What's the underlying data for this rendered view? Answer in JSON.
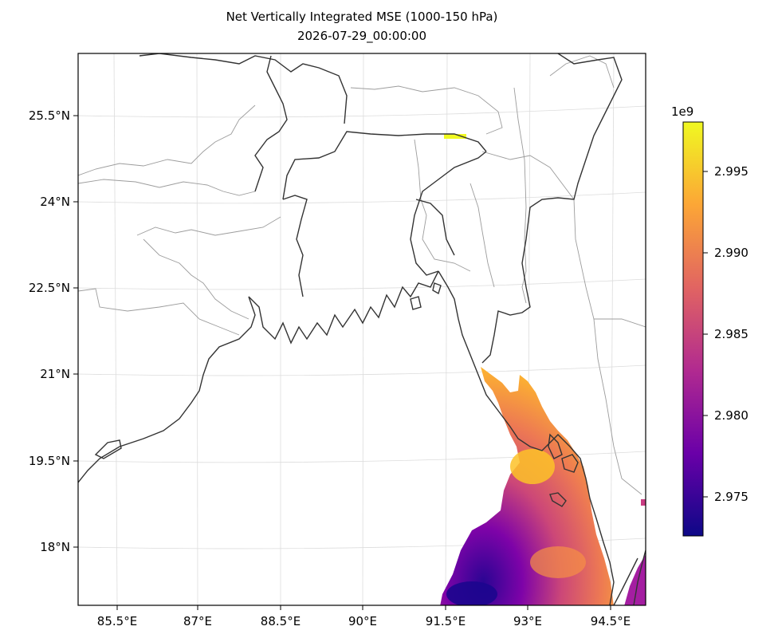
{
  "title": {
    "line1": "Net Vertically Integrated MSE (1000-150 hPa)",
    "line2": "2026-07-29_00:00:00"
  },
  "map": {
    "lat_ticks": [
      "25.5°N",
      "24°N",
      "22.5°N",
      "21°N",
      "19.5°N",
      "18°N"
    ],
    "lon_ticks": [
      "85.5°E",
      "87°E",
      "88.5°E",
      "90°E",
      "91.5°E",
      "93°E",
      "94.5°E"
    ]
  },
  "colorbar": {
    "multiplier": "1e9",
    "ticks": [
      "2.995",
      "2.990",
      "2.985",
      "2.980",
      "2.975"
    ],
    "colormap": [
      "#0d0887",
      "#6a00a8",
      "#b12a90",
      "#e16462",
      "#fca636",
      "#f0f921"
    ]
  }
}
